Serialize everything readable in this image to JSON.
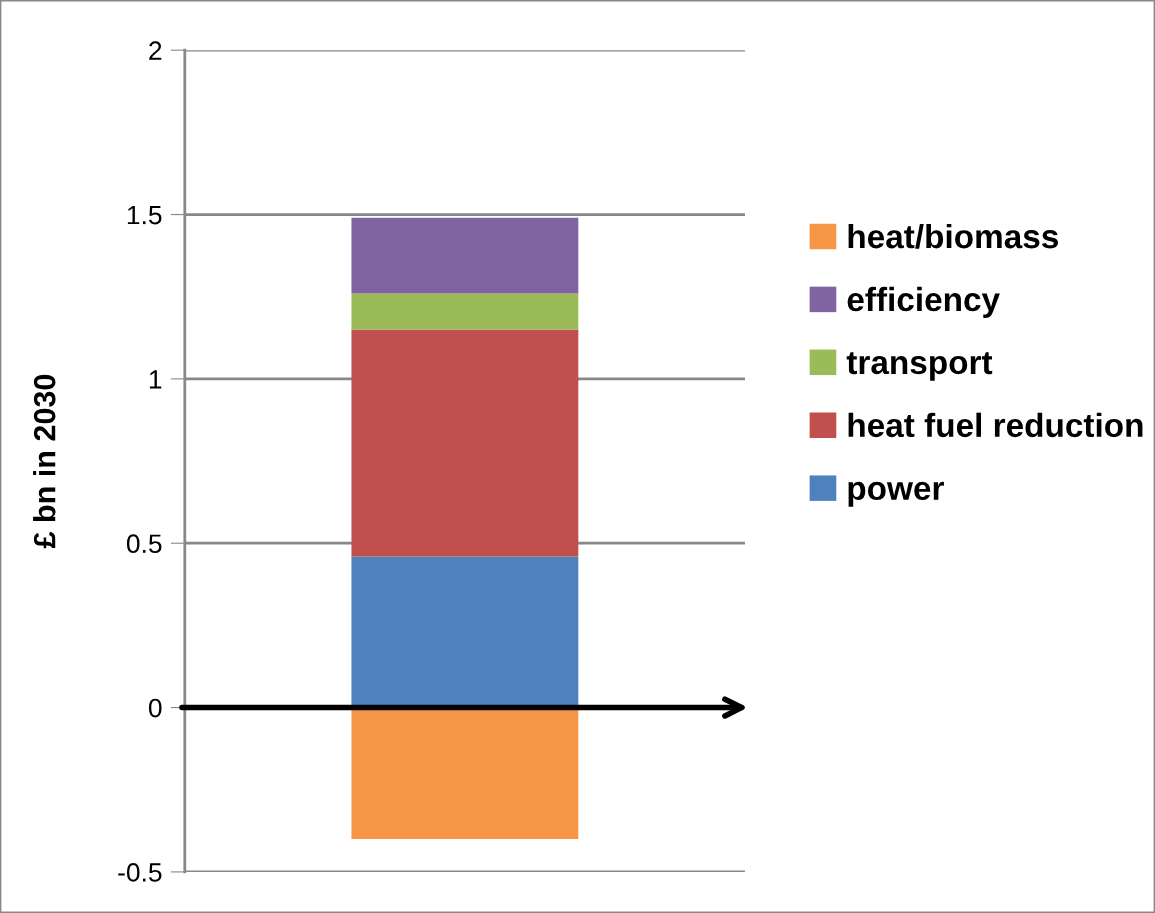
{
  "chart_data": {
    "type": "bar",
    "stacked": true,
    "ylabel": "£ bn in 2030",
    "categories": [
      null
    ],
    "series": [
      {
        "name": "power",
        "color": "#4f81bd",
        "values": [
          0.46
        ]
      },
      {
        "name": "heat fuel reduction",
        "color": "#c0504d",
        "values": [
          0.69
        ]
      },
      {
        "name": "transport",
        "color": "#9bbb59",
        "values": [
          0.11
        ]
      },
      {
        "name": "efficiency",
        "color": "#8064a2",
        "values": [
          0.23
        ]
      },
      {
        "name": "heat/biomass",
        "color": "#f79646",
        "values": [
          -0.4
        ]
      }
    ],
    "ylim": [
      -0.5,
      2
    ],
    "yticks": [
      -0.5,
      0,
      0.5,
      1,
      1.5,
      2
    ],
    "grid": "y",
    "legend": "right"
  }
}
